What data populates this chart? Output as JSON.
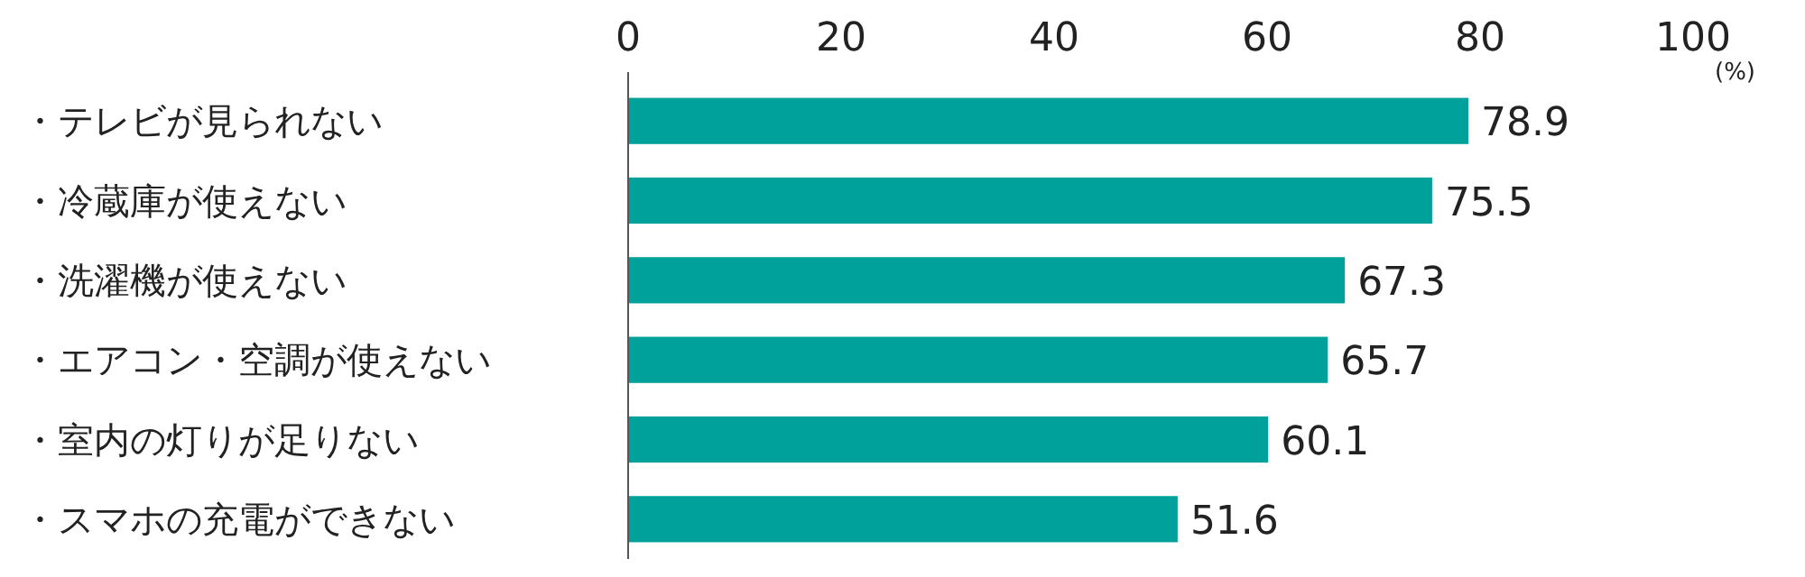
{
  "chart_data": {
    "type": "bar",
    "orientation": "horizontal",
    "categories": [
      "・テレビが見られない",
      "・冷蔵庫が使えない",
      "・洗濯機が使えない",
      "・エアコン・空調が使えない",
      "・室内の灯りが足りない",
      "・スマホの充電ができない"
    ],
    "values": [
      78.9,
      75.5,
      67.3,
      65.7,
      60.1,
      51.6
    ],
    "color": "#00a19a",
    "xlim": [
      0,
      100
    ],
    "xticks": [
      0,
      20,
      40,
      60,
      80,
      100
    ],
    "xlabel": "(%)",
    "data_labels": true,
    "grid": false
  }
}
